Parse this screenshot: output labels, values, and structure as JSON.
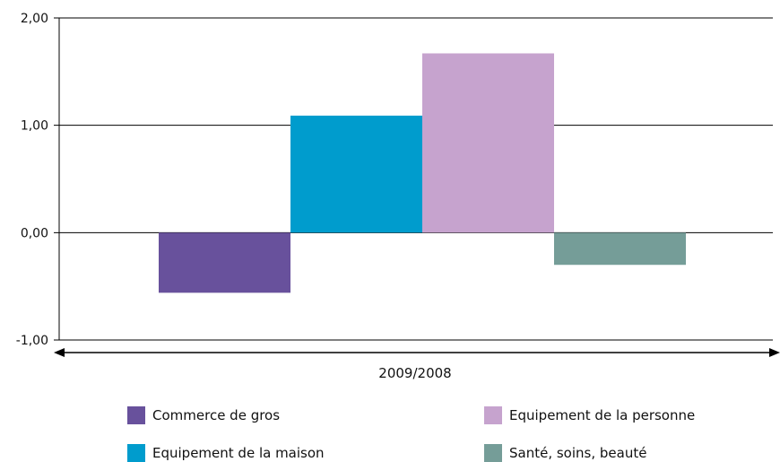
{
  "chart_data": {
    "type": "bar",
    "categories": [
      "2009/2008"
    ],
    "series": [
      {
        "name": "Commerce de gros",
        "values": [
          -0.56
        ],
        "color": "#68519c"
      },
      {
        "name": "Equipement de la maison",
        "values": [
          1.09
        ],
        "color": "#009ccd"
      },
      {
        "name": "Equipement de la personne",
        "values": [
          1.67
        ],
        "color": "#c6a3ce"
      },
      {
        "name": "Santé, soins, beauté",
        "values": [
          -0.3
        ],
        "color": "#759d98"
      }
    ],
    "ylim": [
      -1.0,
      2.0
    ],
    "yticks": [
      -1.0,
      0.0,
      1.0,
      2.0
    ],
    "ytick_labels": [
      "-1,00",
      "0,00",
      "1,00",
      "2,00"
    ],
    "grid": true,
    "legend_position": "bottom",
    "xlabel": "",
    "ylabel": "",
    "title": ""
  }
}
